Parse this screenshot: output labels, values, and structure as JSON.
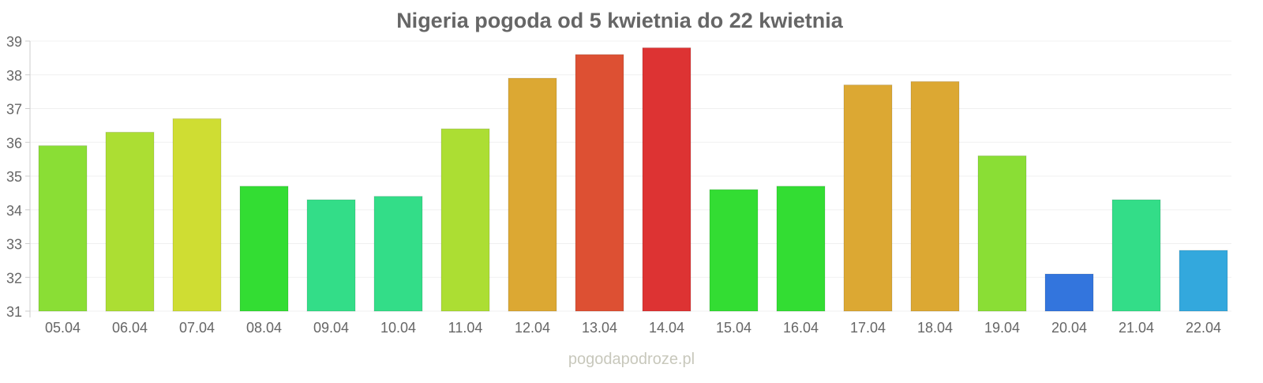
{
  "chart_data": {
    "type": "bar",
    "title": "Nigeria pogoda od 5 kwietnia do 22 kwietnia",
    "xlabel": "",
    "ylabel": "",
    "ylim": [
      31,
      39
    ],
    "yticks": [
      31,
      32,
      33,
      34,
      35,
      36,
      37,
      38,
      39
    ],
    "grid": true,
    "categories": [
      "05.04",
      "06.04",
      "07.04",
      "08.04",
      "09.04",
      "10.04",
      "11.04",
      "12.04",
      "13.04",
      "14.04",
      "15.04",
      "16.04",
      "17.04",
      "18.04",
      "19.04",
      "20.04",
      "21.04",
      "22.04"
    ],
    "values": [
      35.9,
      36.3,
      36.7,
      34.7,
      34.3,
      34.4,
      36.4,
      37.9,
      38.6,
      38.8,
      34.6,
      34.7,
      37.7,
      37.8,
      35.6,
      32.1,
      34.3,
      32.8
    ],
    "colors": [
      "#8ade35",
      "#acde33",
      "#cfdd33",
      "#33dd33",
      "#33dd88",
      "#33dd88",
      "#acde33",
      "#dca833",
      "#dd5033",
      "#dd3333",
      "#33dd33",
      "#33dd33",
      "#dca833",
      "#dca833",
      "#8ade35",
      "#3375dd",
      "#33dd88",
      "#33a8dd"
    ]
  },
  "watermark": "pogodapodroze.pl"
}
